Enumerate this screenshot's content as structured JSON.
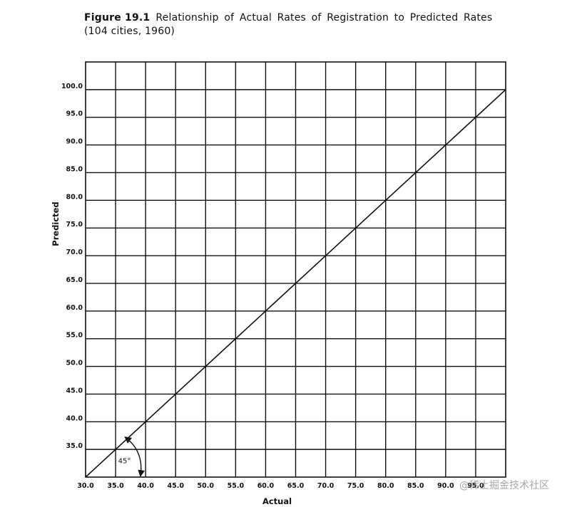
{
  "caption": {
    "figure_label": "Figure 19.1",
    "title": "Relationship of Actual Rates of Registration to Predicted Rates",
    "subtitle": "(104 cities, 1960)"
  },
  "watermark": "@稀土掘金技术社区",
  "chart_data": {
    "type": "line",
    "title": "Relationship of Actual Rates of Registration to Predicted Rates",
    "subtitle": "(104 cities, 1960)",
    "xlabel": "Actual",
    "ylabel": "Predicted",
    "xlim": [
      30,
      100
    ],
    "ylim": [
      30,
      105
    ],
    "x_ticks": [
      30,
      35,
      40,
      45,
      50,
      55,
      60,
      65,
      70,
      75,
      80,
      85,
      90,
      95,
      100
    ],
    "x_tick_labels": [
      "30.0",
      "35.0",
      "40.0",
      "45.0",
      "50.0",
      "55.0",
      "60.0",
      "65.0",
      "70.0",
      "75.0",
      "80.0",
      "85.0",
      "90.0",
      "95.0",
      ""
    ],
    "y_ticks": [
      35,
      40,
      45,
      50,
      55,
      60,
      65,
      70,
      75,
      80,
      85,
      90,
      95,
      100
    ],
    "y_tick_labels": [
      "35.0",
      "40.0",
      "45.0",
      "50.0",
      "55.0",
      "60.0",
      "65.0",
      "70.0",
      "75.0",
      "80.0",
      "85.0",
      "90.0",
      "95.0",
      "100.0"
    ],
    "grid": true,
    "series": [
      {
        "x": [
          30,
          100
        ],
        "y": [
          30,
          100
        ]
      }
    ],
    "annotations": [
      {
        "text": "45°",
        "x": 36,
        "y": 32
      }
    ],
    "colors": {
      "ink": "#111111",
      "background": "#ffffff"
    }
  }
}
